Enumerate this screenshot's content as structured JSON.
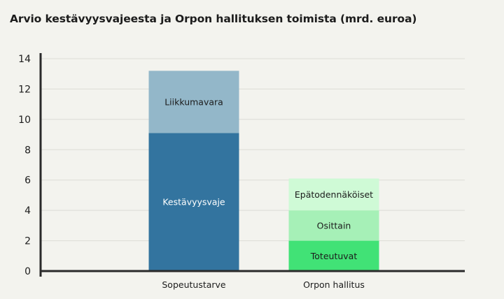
{
  "chart_data": {
    "type": "bar",
    "stacked": true,
    "title": "Arvio kestävyysvajeesta ja Orpon hallituksen toimista (mrd. euroa)",
    "categories": [
      "Sopeutustarve",
      "Orpon hallitus"
    ],
    "ylim": [
      0,
      14
    ],
    "yticks": [
      0,
      2,
      4,
      6,
      8,
      10,
      12,
      14
    ],
    "grid": true,
    "legend": "none",
    "bars": [
      {
        "category": "Sopeutustarve",
        "segments": [
          {
            "label": "Kestävyysvaje",
            "value": 9.1,
            "color": "#33749f",
            "text_color": "#ffffff"
          },
          {
            "label": "Liikkumavara",
            "value": 4.1,
            "color": "#93b7c9",
            "text_color": "#1c1c1c"
          }
        ]
      },
      {
        "category": "Orpon hallitus",
        "segments": [
          {
            "label": "Toteutuvat",
            "value": 2.0,
            "color": "#41e276",
            "text_color": "#1c1c1c"
          },
          {
            "label": "Osittain",
            "value": 2.0,
            "color": "#a6f0b7",
            "text_color": "#1c1c1c"
          },
          {
            "label": "Epätodennäköiset",
            "value": 2.1,
            "color": "#cffad6",
            "text_color": "#1c1c1c"
          }
        ]
      }
    ]
  }
}
